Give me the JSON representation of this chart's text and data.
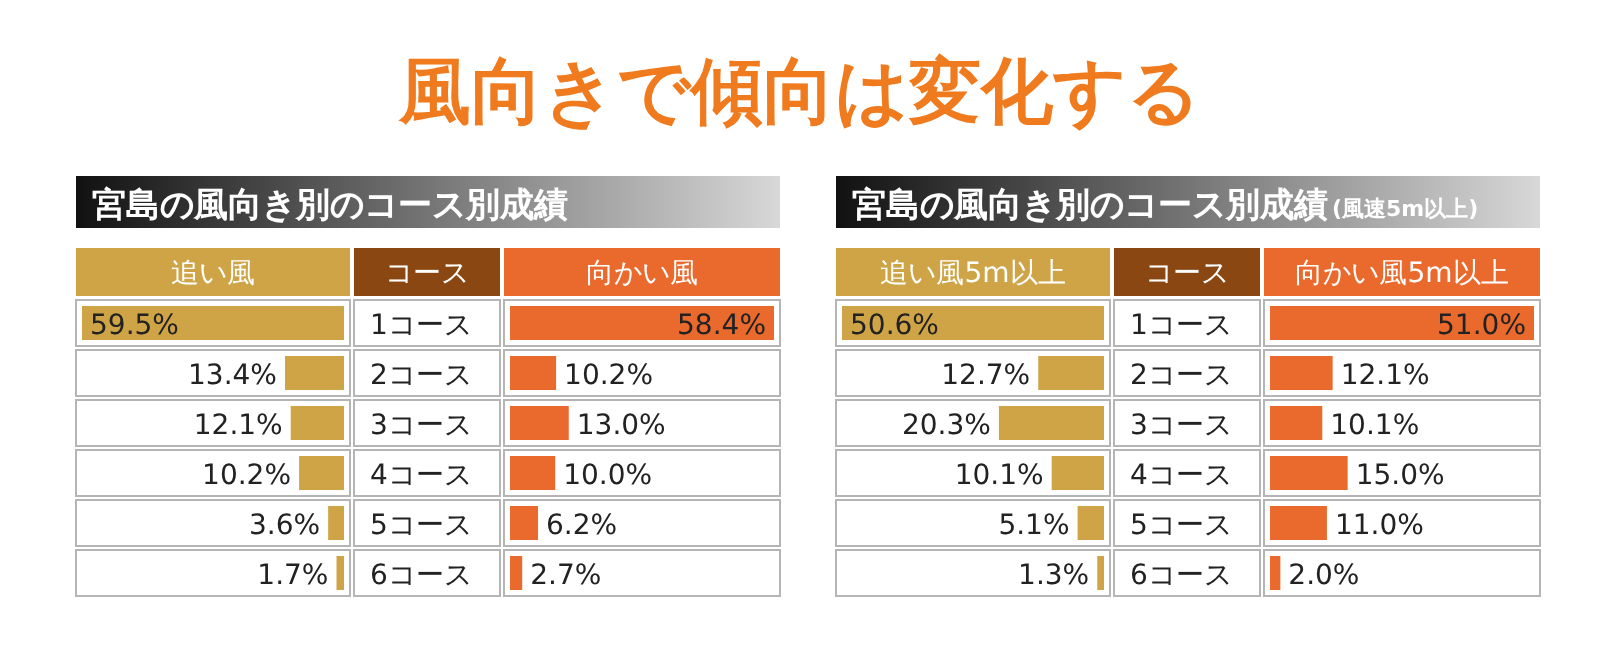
{
  "chart_data": [
    {
      "type": "other",
      "title": "風向きで傾向は変化する"
    },
    {
      "type": "other",
      "title": "宮島の風向き別のコース別成績"
    },
    {
      "type": "bar",
      "orientation": "horizontal",
      "ylabel": "コース",
      "categories": [
        "1コース",
        "2コース",
        "3コース",
        "4コース",
        "5コース",
        "6コース"
      ],
      "series": [
        {
          "name": "追い風",
          "color": "#cfa446",
          "values": [
            59.5,
            13.4,
            12.1,
            10.2,
            3.6,
            1.7
          ],
          "value_labels": [
            "59.5%",
            "13.4%",
            "12.1%",
            "10.2%",
            "3.6%",
            "1.7%"
          ]
        }
      ]
    },
    {
      "type": "bar",
      "orientation": "horizontal",
      "categories": [
        null,
        null,
        null,
        null,
        null,
        null
      ],
      "series": [
        {
          "name": "向かい風",
          "color": "#ea6a2e",
          "values": [
            58.4,
            10.2,
            13.0,
            10.0,
            6.2,
            2.7
          ],
          "value_labels": [
            "58.4%",
            "10.2%",
            "13.0%",
            "10.0%",
            "6.2%",
            "2.7%"
          ]
        }
      ]
    },
    {
      "type": "other",
      "title": "宮島の風向き別のコース別成績",
      "subtitle": "(風速5m以上)"
    },
    {
      "type": "bar",
      "orientation": "horizontal",
      "ylabel": "コース",
      "categories": [
        "1コース",
        "2コース",
        "3コース",
        "4コース",
        "5コース",
        "6コース"
      ],
      "series": [
        {
          "name": "追い風5m以上",
          "color": "#cfa446",
          "values": [
            50.6,
            12.7,
            20.3,
            10.1,
            5.1,
            1.3
          ],
          "value_labels": [
            "50.6%",
            "12.7%",
            "20.3%",
            "10.1%",
            "5.1%",
            "1.3%"
          ]
        }
      ]
    },
    {
      "type": "bar",
      "orientation": "horizontal",
      "categories": [
        null,
        null,
        null,
        null,
        null,
        null
      ],
      "series": [
        {
          "name": "向かい風5m以上",
          "color": "#ea6a2e",
          "values": [
            51.0,
            12.1,
            10.1,
            15.0,
            11.0,
            2.0
          ],
          "value_labels": [
            "51.0%",
            "12.1%",
            "10.1%",
            "15.0%",
            "11.0%",
            "2.0%"
          ]
        }
      ]
    }
  ]
}
